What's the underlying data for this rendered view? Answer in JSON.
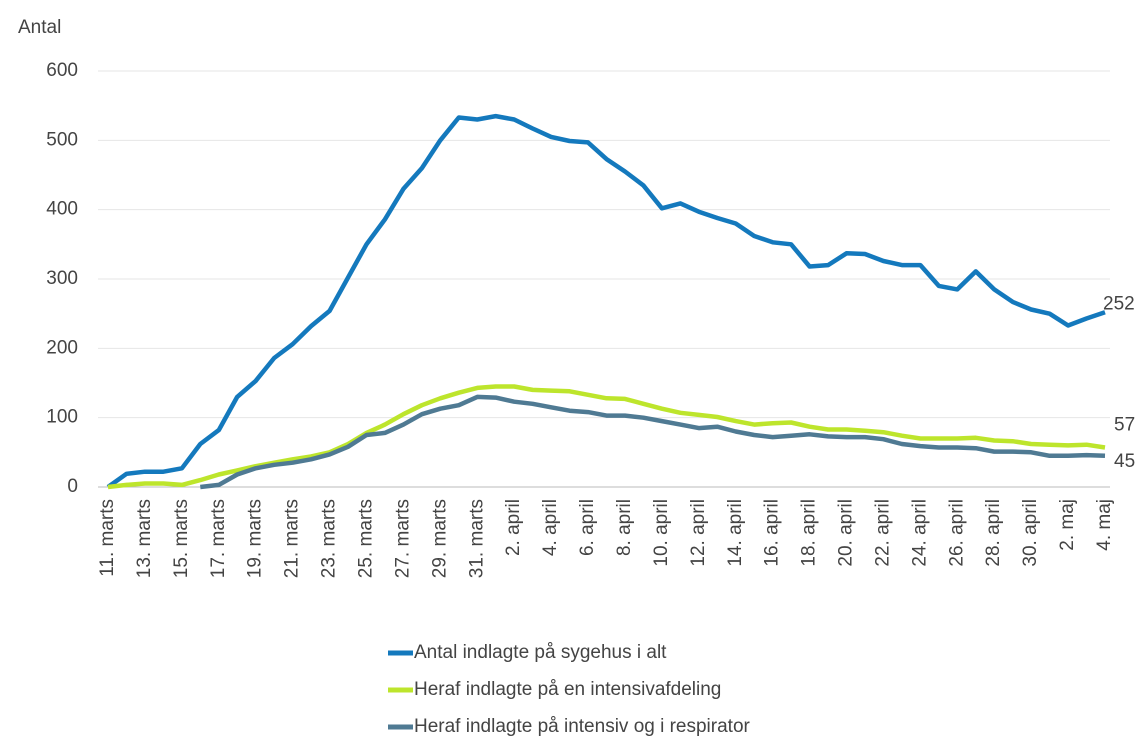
{
  "chart_data": {
    "type": "line",
    "y_axis_label": "Antal",
    "categories": [
      "11. marts",
      null,
      "13. marts",
      null,
      "15. marts",
      null,
      "17. marts",
      null,
      "19. marts",
      null,
      "21. marts",
      null,
      "23. marts",
      null,
      "25. marts",
      null,
      "27. marts",
      null,
      "29. marts",
      null,
      "31. marts",
      null,
      "2. april",
      null,
      "4. april",
      null,
      "6. april",
      null,
      "8. april",
      null,
      "10. april",
      null,
      "12. april",
      null,
      "14. april",
      null,
      "16. april",
      null,
      "18. april",
      null,
      "20. april",
      null,
      "22. april",
      null,
      "24. april",
      null,
      "26. april",
      null,
      "28. april",
      null,
      "30. april",
      null,
      "2. maj",
      null,
      "4. maj"
    ],
    "series": [
      {
        "name": "Antal indlagte på sygehus i alt",
        "color": "#1479bd",
        "values": [
          0,
          19,
          22,
          22,
          27,
          62,
          82,
          130,
          153,
          186,
          206,
          232,
          254,
          302,
          350,
          386,
          430,
          460,
          500,
          533,
          530,
          535,
          530,
          517,
          505,
          499,
          497,
          473,
          455,
          435,
          402,
          409,
          397,
          388,
          380,
          362,
          353,
          350,
          318,
          320,
          337,
          336,
          326,
          320,
          320,
          290,
          285,
          311,
          285,
          267,
          256,
          250,
          233,
          243,
          252
        ]
      },
      {
        "name": "Heraf indlagte på en intensivafdeling",
        "color": "#bde52c",
        "values": [
          0,
          3,
          5,
          5,
          3,
          10,
          18,
          24,
          30,
          35,
          40,
          44,
          50,
          62,
          78,
          90,
          105,
          118,
          128,
          136,
          143,
          145,
          145,
          140,
          139,
          138,
          133,
          128,
          127,
          120,
          113,
          107,
          104,
          101,
          95,
          90,
          92,
          93,
          87,
          83,
          83,
          81,
          79,
          74,
          70,
          70,
          70,
          71,
          67,
          66,
          62,
          61,
          60,
          61,
          57
        ]
      },
      {
        "name": "Heraf indlagte på intensiv og i respirator",
        "color": "#4f7a93",
        "values": [
          null,
          null,
          null,
          null,
          null,
          0,
          3,
          18,
          27,
          32,
          35,
          40,
          47,
          58,
          75,
          78,
          90,
          105,
          113,
          118,
          130,
          129,
          123,
          120,
          115,
          110,
          108,
          103,
          103,
          100,
          95,
          90,
          85,
          87,
          80,
          75,
          72,
          74,
          76,
          73,
          72,
          72,
          69,
          62,
          59,
          57,
          57,
          56,
          51,
          51,
          50,
          45,
          45,
          46,
          45
        ]
      }
    ],
    "ylim": [
      0,
      600
    ],
    "yticks": [
      0,
      100,
      200,
      300,
      400,
      500,
      600
    ],
    "grid": true
  }
}
